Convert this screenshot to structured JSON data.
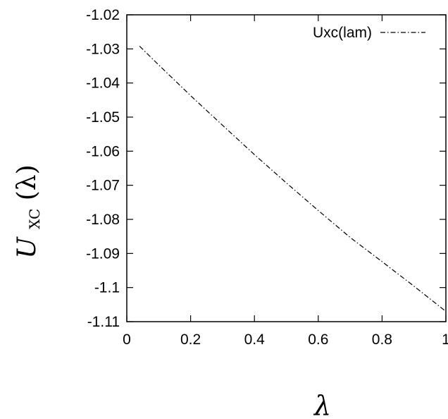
{
  "chart_data": {
    "type": "line",
    "title": "",
    "xlabel": "λ",
    "ylabel": {
      "symbol": "U",
      "subscript": "XC",
      "argument": "(λ)"
    },
    "xlim": [
      0,
      1
    ],
    "ylim": [
      -1.11,
      -1.02
    ],
    "xticks": [
      "0",
      "0.2",
      "0.4",
      "0.6",
      "0.8",
      "1"
    ],
    "yticks": [
      "-1.02",
      "-1.03",
      "-1.04",
      "-1.05",
      "-1.06",
      "-1.07",
      "-1.08",
      "-1.09",
      "-1.1",
      "-1.11"
    ],
    "grid": false,
    "legend_position": "top-right",
    "series": [
      {
        "name": "Uxc(lam)",
        "style": "dash-dot",
        "color": "#000000",
        "x": [
          0.04,
          0.1,
          0.2,
          0.3,
          0.4,
          0.5,
          0.6,
          0.7,
          0.8,
          0.9,
          1.0
        ],
        "y": [
          -1.0292,
          -1.0347,
          -1.0437,
          -1.0524,
          -1.061,
          -1.0693,
          -1.0774,
          -1.0853,
          -1.0924,
          -1.0996,
          -1.107
        ]
      }
    ]
  }
}
